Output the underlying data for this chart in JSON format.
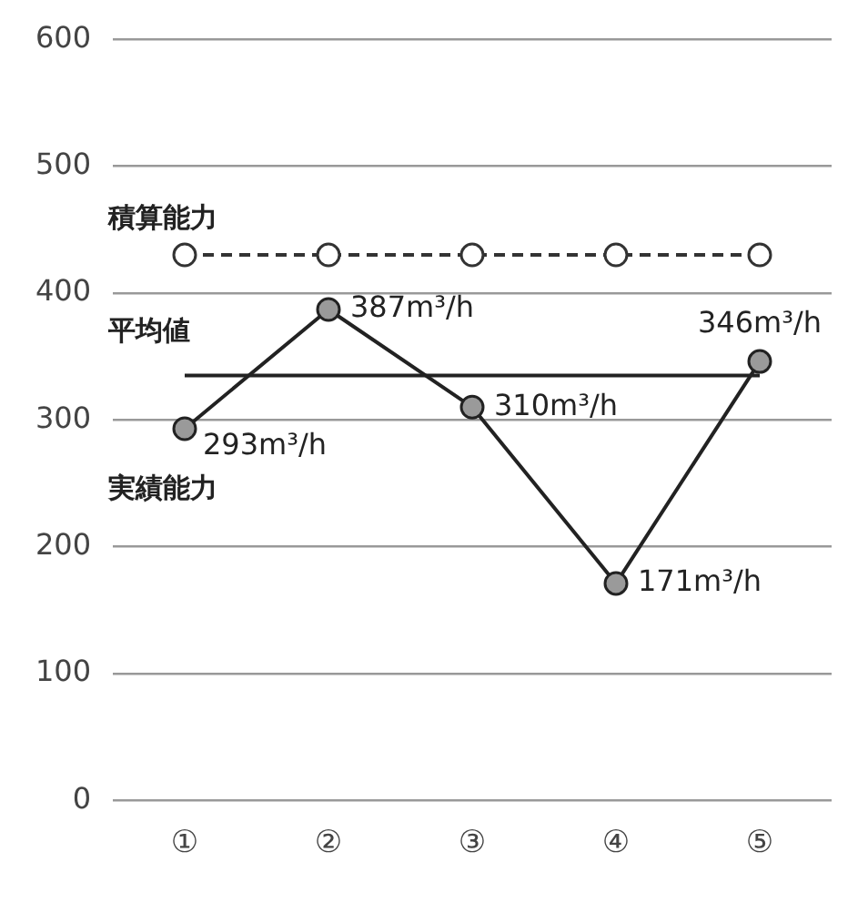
{
  "chart_data": {
    "type": "line",
    "categories": [
      "①",
      "②",
      "③",
      "④",
      "⑤"
    ],
    "series": [
      {
        "name": "積算能力",
        "color": "#333333",
        "line_style": "dashed",
        "values": [
          430,
          430,
          430,
          430,
          430
        ]
      },
      {
        "name": "実績能力",
        "color": "#222222",
        "line_style": "solid",
        "values": [
          293,
          387,
          310,
          171,
          346
        ],
        "value_labels": [
          "293m³/h",
          "387m³/h",
          "310m³/h",
          "171m³/h",
          "346m³/h"
        ]
      }
    ],
    "ref_lines": [
      {
        "axis": "y",
        "value": 335,
        "label": "平均値",
        "color": "#222222",
        "line_style": "solid"
      }
    ],
    "ylim": [
      0,
      600
    ],
    "yticks": [
      0,
      100,
      200,
      300,
      400,
      500,
      600
    ],
    "grid": "y",
    "legend": false,
    "marker": "circle"
  }
}
